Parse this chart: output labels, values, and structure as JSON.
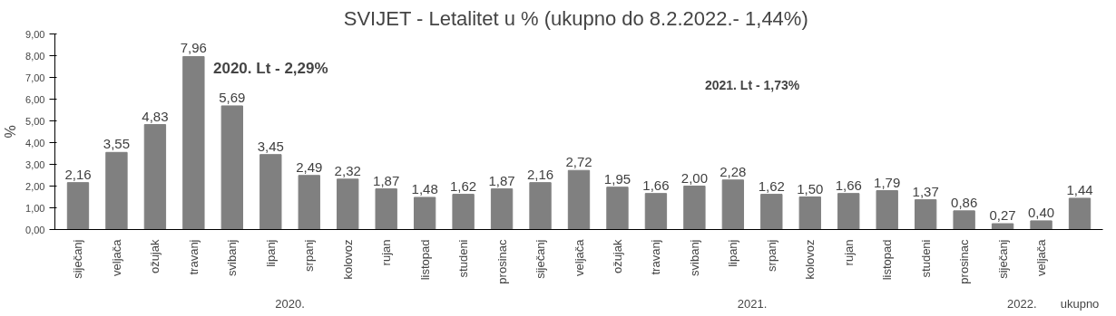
{
  "chart_data": {
    "type": "bar",
    "title": "SVIJET - Letalitet u %  (ukupno do 8.2.2022.- 1,44%)",
    "ylabel": "%",
    "categories": [
      "siječanj",
      "veljača",
      "ožujak",
      "travanj",
      "svibanj",
      "lipanj",
      "srpanj",
      "kolovoz",
      "rujan",
      "listopad",
      "studeni",
      "prosinac",
      "siječanj",
      "veljača",
      "ožujak",
      "travanj",
      "svibanj",
      "lipanj",
      "srpanj",
      "kolovoz",
      "rujan",
      "listopad",
      "studeni",
      "prosinac",
      "siječanj",
      "veljača",
      null
    ],
    "values": [
      2.16,
      3.55,
      4.83,
      7.96,
      5.69,
      3.45,
      2.49,
      2.32,
      1.87,
      1.48,
      1.62,
      1.87,
      2.16,
      2.72,
      1.95,
      1.66,
      2.0,
      2.28,
      1.62,
      1.5,
      1.66,
      1.79,
      1.37,
      0.86,
      0.27,
      0.4,
      1.44
    ],
    "value_labels": [
      "2,16",
      "3,55",
      "4,83",
      "7,96",
      "5,69",
      "3,45",
      "2,49",
      "2,32",
      "1,87",
      "1,48",
      "1,62",
      "1,87",
      "2,16",
      "2,72",
      "1,95",
      "1,66",
      "2,00",
      "2,28",
      "1,62",
      "1,50",
      "1,66",
      "1,79",
      "1,37",
      "0,86",
      "0,27",
      "0,40",
      "1,44"
    ],
    "color": "#808080",
    "ylim": [
      0,
      9
    ],
    "yticks": [
      {
        "value": 0,
        "label": "0,00"
      },
      {
        "value": 1,
        "label": "1,00"
      },
      {
        "value": 2,
        "label": "2,00"
      },
      {
        "value": 3,
        "label": "3,00"
      },
      {
        "value": 4,
        "label": "4,00"
      },
      {
        "value": 5,
        "label": "5,00"
      },
      {
        "value": 6,
        "label": "6,00"
      },
      {
        "value": 7,
        "label": "7,00"
      },
      {
        "value": 8,
        "label": "8,00"
      },
      {
        "value": 9,
        "label": "9,00"
      }
    ],
    "annotations": [
      "2020. Lt - 2,29%",
      "2021. Lt - 1,73%",
      "2020.",
      "2021.",
      "2022.",
      "ukupno"
    ],
    "grid": false
  }
}
